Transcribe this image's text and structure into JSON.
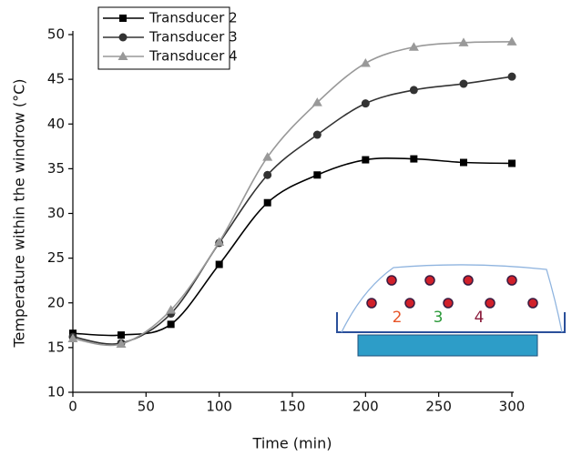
{
  "chart_data": {
    "type": "line",
    "x_label": "Time (min)",
    "y_label": "Temperature within the windrow (°C)",
    "x": [
      0,
      33,
      67,
      100,
      133,
      167,
      200,
      233,
      267,
      300
    ],
    "series": [
      {
        "name": "Transducer 2",
        "color": "#000000",
        "marker": "square",
        "values": [
          16.6,
          16.4,
          17.6,
          24.3,
          31.2,
          34.3,
          36.0,
          36.1,
          35.7,
          35.6
        ]
      },
      {
        "name": "Transducer 3",
        "color": "#333333",
        "marker": "circle",
        "values": [
          16.2,
          15.5,
          18.8,
          26.7,
          34.3,
          38.8,
          42.3,
          43.8,
          44.5,
          45.3
        ]
      },
      {
        "name": "Transducer 4",
        "color": "#999999",
        "marker": "triangle",
        "values": [
          16.0,
          15.4,
          19.2,
          26.8,
          36.3,
          42.4,
          46.8,
          48.6,
          49.1,
          49.2
        ]
      }
    ],
    "xlim": [
      0,
      300
    ],
    "xticks": [
      0,
      50,
      100,
      150,
      200,
      250,
      300
    ],
    "ylim": [
      10,
      50
    ],
    "yticks": [
      10,
      15,
      20,
      25,
      30,
      35,
      40,
      45,
      50
    ],
    "legend": "upper left"
  },
  "inset": {
    "labels": [
      "2",
      "3",
      "4"
    ]
  }
}
